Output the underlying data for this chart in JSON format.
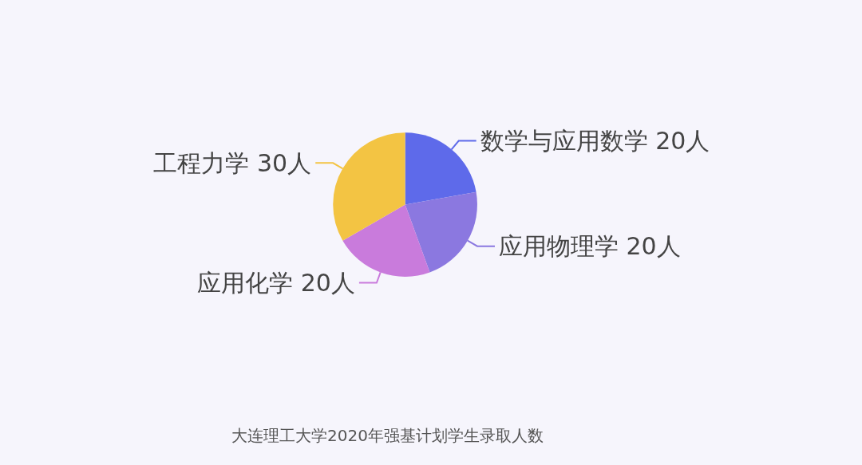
{
  "chart_data": {
    "type": "pie",
    "categories": [
      "数学与应用数学",
      "应用物理学",
      "应用化学",
      "工程力学"
    ],
    "values": [
      20,
      20,
      20,
      30
    ],
    "value_labels": [
      "20人",
      "20人",
      "20人",
      "30人"
    ],
    "colors": [
      "#5e6aea",
      "#8b78e0",
      "#c97bdc",
      "#f3c443"
    ],
    "annotations": [
      "大连理工大学2020年强基计划学生录取人数"
    ]
  }
}
